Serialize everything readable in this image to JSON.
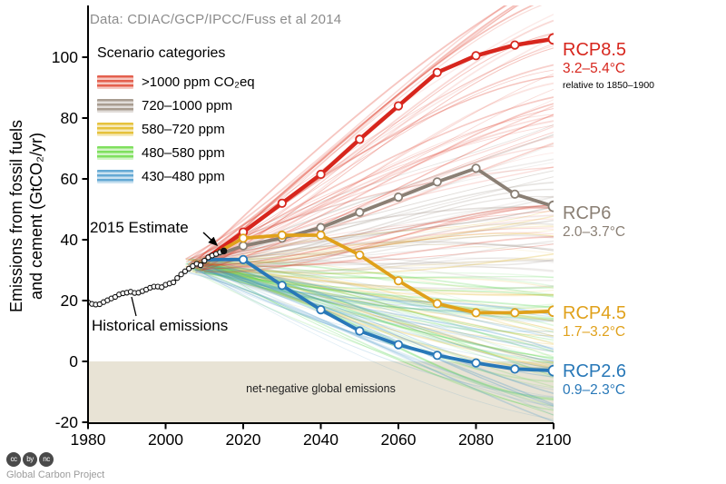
{
  "source_note": "Data: CDIAC/GCP/IPCC/Fuss et al 2014",
  "annotations": {
    "estimate_2015": "2015 Estimate",
    "historical": "Historical emissions",
    "net_negative": "net-negative global emissions"
  },
  "footer": {
    "credit": "Global Carbon Project",
    "badges": [
      "cc",
      "by",
      "nc"
    ]
  },
  "chart_data": {
    "type": "line",
    "title": "",
    "ylabel_line1": "Emissions from fossil fuels",
    "ylabel_line2": "and cement (GtCO₂/yr)",
    "xlim": [
      1980,
      2100
    ],
    "ylim": [
      -20,
      116
    ],
    "x_ticks": [
      1980,
      2000,
      2020,
      2040,
      2060,
      2080,
      2100
    ],
    "y_ticks": [
      -20,
      0,
      20,
      40,
      60,
      80,
      100
    ],
    "grid": false,
    "legend_position": "upper-left",
    "legend": {
      "title": "Scenario categories",
      "items": [
        {
          "label": ">1000 ppm CO₂eq",
          "color": "#e4604e"
        },
        {
          "label": "720–1000 ppm",
          "color": "#a89c90"
        },
        {
          "label": "580–720 ppm",
          "color": "#e6c23c"
        },
        {
          "label": "480–580 ppm",
          "color": "#7fe05e"
        },
        {
          "label": "430–480 ppm",
          "color": "#64a9d4"
        }
      ]
    },
    "net_negative_region": {
      "from": -20,
      "to": 0,
      "fill": "#e8e3d5"
    },
    "historical": {
      "label": "Historical emissions",
      "color": "#111111",
      "years": [
        1980,
        1981,
        1982,
        1983,
        1984,
        1985,
        1986,
        1987,
        1988,
        1989,
        1990,
        1991,
        1992,
        1993,
        1994,
        1995,
        1996,
        1997,
        1998,
        1999,
        2000,
        2001,
        2002,
        2003,
        2004,
        2005,
        2006,
        2007,
        2008,
        2009,
        2010,
        2011,
        2012,
        2013,
        2014,
        2015
      ],
      "values": [
        19.4,
        18.9,
        18.7,
        18.8,
        19.5,
        20.1,
        20.7,
        21.2,
        22.0,
        22.4,
        22.6,
        22.9,
        22.5,
        22.6,
        23.1,
        23.6,
        24.2,
        24.6,
        24.6,
        24.4,
        25.2,
        25.6,
        26.0,
        27.4,
        28.6,
        29.6,
        30.5,
        31.3,
        32.1,
        31.6,
        33.1,
        34.2,
        34.8,
        35.3,
        35.9,
        36.3
      ]
    },
    "series": [
      {
        "name": "RCP8.5",
        "temp": "3.2–5.4°C",
        "note": "relative to 1850–1900",
        "color": "#d7261d",
        "years": [
          2010,
          2020,
          2030,
          2040,
          2050,
          2060,
          2070,
          2080,
          2090,
          2100
        ],
        "values": [
          33.5,
          42.5,
          52,
          61.5,
          73,
          84,
          95,
          100.5,
          104,
          106
        ]
      },
      {
        "name": "RCP6",
        "temp": "2.0–3.7°C",
        "note": "",
        "color": "#8a7f74",
        "years": [
          2010,
          2020,
          2030,
          2040,
          2050,
          2060,
          2070,
          2080,
          2090,
          2100
        ],
        "values": [
          33.5,
          38,
          40.5,
          44,
          49,
          54,
          59,
          63.5,
          55,
          51
        ]
      },
      {
        "name": "RCP4.5",
        "temp": "1.7–3.2°C",
        "note": "",
        "color": "#e0a11b",
        "years": [
          2010,
          2020,
          2030,
          2040,
          2050,
          2060,
          2070,
          2080,
          2090,
          2100
        ],
        "values": [
          33.5,
          40.5,
          41.5,
          41.5,
          35,
          26.5,
          19,
          16,
          16,
          16.5
        ]
      },
      {
        "name": "RCP2.6",
        "temp": "0.9–2.3°C",
        "note": "",
        "color": "#2878b8",
        "years": [
          2010,
          2020,
          2030,
          2040,
          2050,
          2060,
          2070,
          2080,
          2090,
          2100
        ],
        "values": [
          33.5,
          33.5,
          25,
          17,
          10,
          5.5,
          2,
          -0.5,
          -2.5,
          -3
        ]
      }
    ],
    "ensembles": [
      {
        "name": "720-1000ppm-fan",
        "color": "#9a8e83",
        "count": 34,
        "start_year": [
          2005,
          2010
        ],
        "start_val": [
          29,
          34
        ],
        "end_val": [
          24,
          78
        ]
      },
      {
        "name": "580-720ppm-fan",
        "color": "#e3b72a",
        "count": 34,
        "start_year": [
          2005,
          2010
        ],
        "start_val": [
          29,
          34
        ],
        "end_val": [
          -4,
          50
        ]
      },
      {
        "name": "480-580ppm-fan",
        "color": "#55d64e",
        "count": 32,
        "start_year": [
          2005,
          2010
        ],
        "start_val": [
          29,
          34
        ],
        "end_val": [
          -20,
          30
        ]
      },
      {
        "name": "430-480ppm-fan",
        "color": "#4596c8",
        "count": 32,
        "start_year": [
          2005,
          2010
        ],
        "start_val": [
          29,
          34
        ],
        "end_val": [
          -21,
          18
        ]
      },
      {
        "name": ">1000ppm-fan",
        "color": "#df3b28",
        "count": 50,
        "start_year": [
          2005,
          2010
        ],
        "start_val": [
          29,
          34
        ],
        "end_val": [
          38,
          128
        ]
      }
    ]
  }
}
